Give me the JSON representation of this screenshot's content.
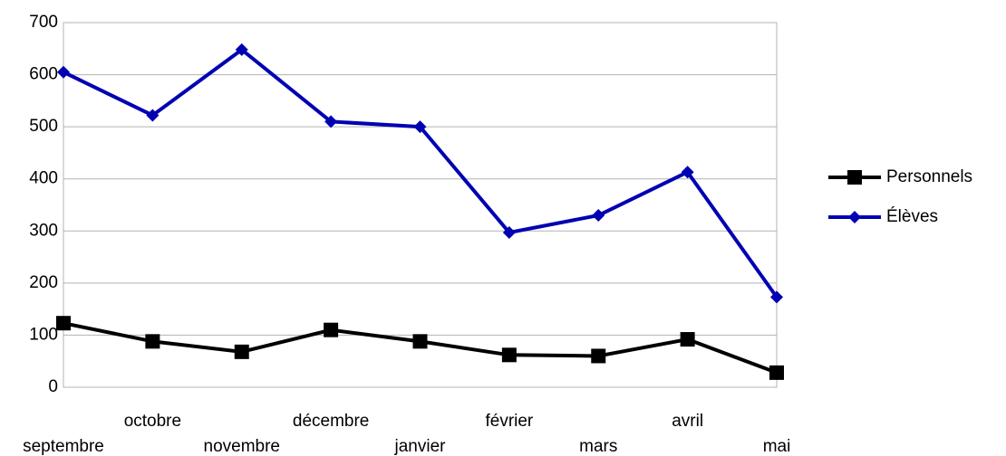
{
  "chart_data": {
    "type": "line",
    "categories": [
      "septembre",
      "octobre",
      "novembre",
      "décembre",
      "janvier",
      "février",
      "mars",
      "avril",
      "mai"
    ],
    "series": [
      {
        "name": "Personnels",
        "color": "#000000",
        "marker": "square",
        "values": [
          123,
          88,
          68,
          110,
          88,
          62,
          60,
          92,
          28
        ]
      },
      {
        "name": "Élèves",
        "color": "#0000b3",
        "marker": "diamond",
        "values": [
          605,
          522,
          648,
          510,
          500,
          297,
          330,
          413,
          173
        ]
      }
    ],
    "ylim": [
      0,
      700
    ],
    "yticks": [
      0,
      100,
      200,
      300,
      400,
      500,
      600,
      700
    ],
    "grid": true,
    "legend": "right"
  }
}
